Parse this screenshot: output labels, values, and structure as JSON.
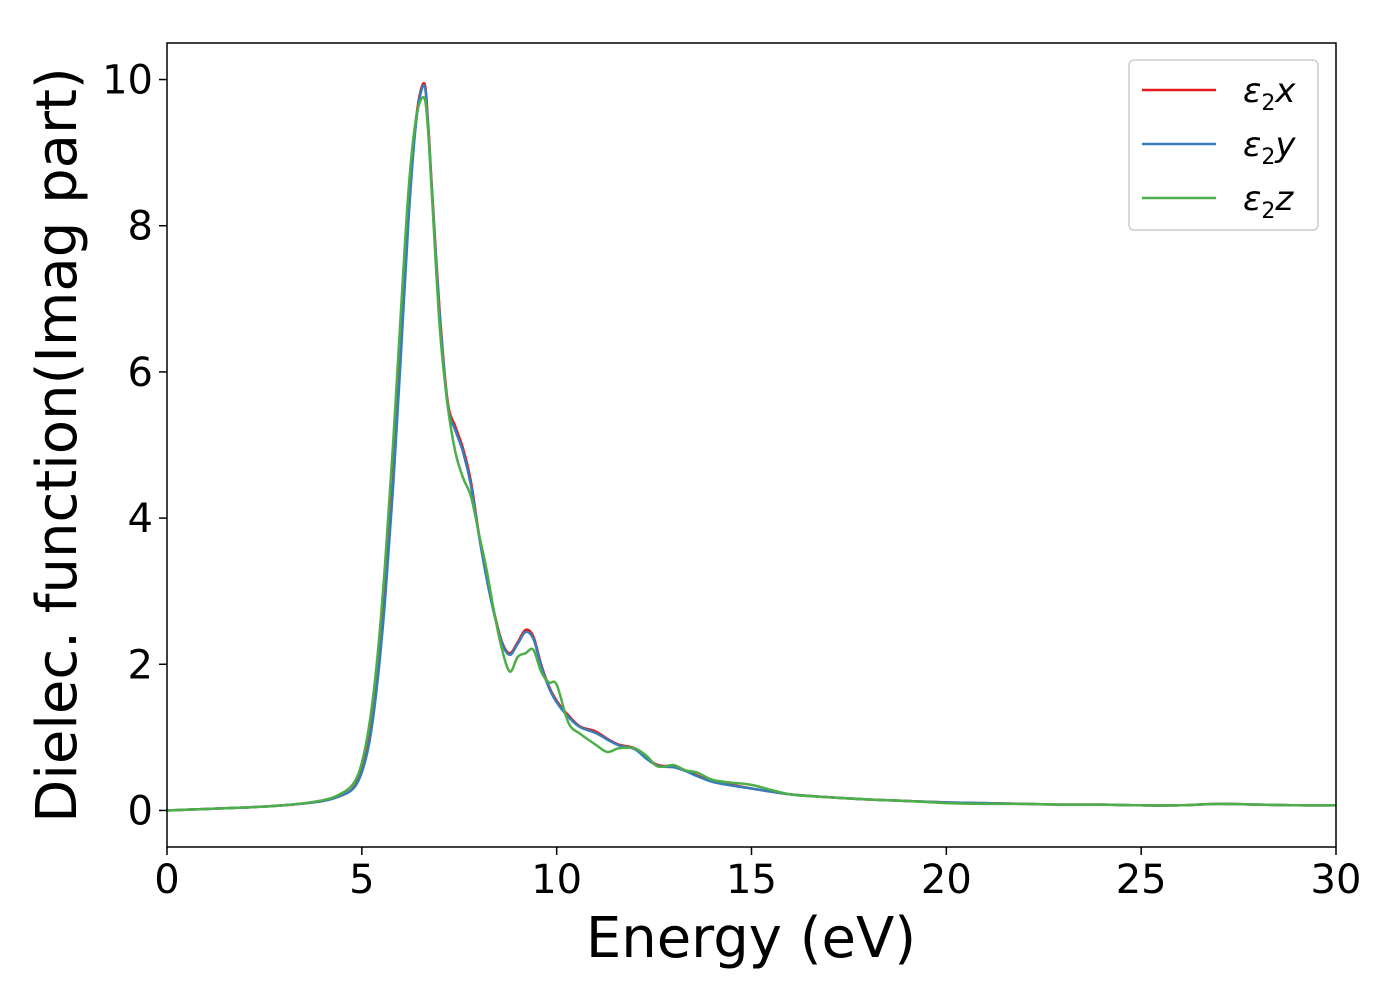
{
  "chart_data": {
    "type": "line",
    "xlabel": "Energy (eV)",
    "ylabel": "Dielec. function(Imag part)",
    "xlim": [
      0,
      30
    ],
    "ylim": [
      -0.5,
      10.5
    ],
    "xticks": [
      0,
      5,
      10,
      15,
      20,
      25,
      30
    ],
    "yticks": [
      0,
      2,
      4,
      6,
      8,
      10
    ],
    "xtick_labels": [
      "0",
      "5",
      "10",
      "15",
      "20",
      "25",
      "30"
    ],
    "ytick_labels": [
      "0",
      "2",
      "4",
      "6",
      "8",
      "10"
    ],
    "grid": false,
    "legend_position": "top-right",
    "series": [
      {
        "name": "ε2x",
        "legend": {
          "symbol": "ε",
          "sub": "2",
          "axis": "x"
        },
        "color": "#e41a1c",
        "x": [
          0,
          1,
          2,
          3,
          4,
          4.5,
          4.8,
          5.0,
          5.2,
          5.4,
          5.6,
          5.8,
          6.0,
          6.2,
          6.4,
          6.6,
          6.7,
          6.8,
          7.0,
          7.2,
          7.4,
          7.6,
          7.8,
          8.0,
          8.2,
          8.4,
          8.6,
          8.8,
          9.0,
          9.2,
          9.4,
          9.6,
          9.8,
          10.0,
          10.3,
          10.6,
          11.0,
          11.3,
          11.6,
          12.0,
          12.3,
          12.6,
          13.0,
          13.3,
          13.6,
          14.0,
          14.5,
          15.0,
          16.0,
          17.0,
          18.0,
          19.0,
          20.0,
          21.0,
          22.0,
          23.0,
          24.0,
          25.0,
          26.0,
          27.0,
          28.0,
          29.0,
          30.0
        ],
        "y": [
          0.0,
          0.02,
          0.04,
          0.07,
          0.13,
          0.21,
          0.32,
          0.55,
          1.0,
          1.8,
          3.0,
          4.5,
          6.3,
          8.2,
          9.5,
          9.95,
          9.4,
          8.5,
          6.8,
          5.6,
          5.25,
          4.95,
          4.5,
          3.8,
          3.2,
          2.7,
          2.3,
          2.15,
          2.3,
          2.47,
          2.38,
          2.0,
          1.7,
          1.5,
          1.3,
          1.15,
          1.08,
          0.98,
          0.9,
          0.85,
          0.72,
          0.62,
          0.6,
          0.55,
          0.48,
          0.4,
          0.35,
          0.3,
          0.22,
          0.18,
          0.15,
          0.13,
          0.11,
          0.1,
          0.09,
          0.08,
          0.08,
          0.07,
          0.07,
          0.09,
          0.08,
          0.07,
          0.07
        ]
      },
      {
        "name": "ε2y",
        "legend": {
          "symbol": "ε",
          "sub": "2",
          "axis": "y"
        },
        "color": "#377eb8",
        "x": [
          0,
          1,
          2,
          3,
          4,
          4.5,
          4.8,
          5.0,
          5.2,
          5.4,
          5.6,
          5.8,
          6.0,
          6.2,
          6.4,
          6.6,
          6.7,
          6.8,
          7.0,
          7.2,
          7.4,
          7.6,
          7.8,
          8.0,
          8.2,
          8.4,
          8.6,
          8.8,
          9.0,
          9.2,
          9.4,
          9.6,
          9.8,
          10.0,
          10.3,
          10.6,
          11.0,
          11.3,
          11.6,
          12.0,
          12.3,
          12.6,
          13.0,
          13.3,
          13.6,
          14.0,
          14.5,
          15.0,
          16.0,
          17.0,
          18.0,
          19.0,
          20.0,
          21.0,
          22.0,
          23.0,
          24.0,
          25.0,
          26.0,
          27.0,
          28.0,
          29.0,
          30.0
        ],
        "y": [
          0.0,
          0.02,
          0.04,
          0.07,
          0.13,
          0.21,
          0.31,
          0.52,
          0.95,
          1.75,
          2.9,
          4.4,
          6.2,
          8.1,
          9.45,
          9.92,
          9.35,
          8.45,
          6.75,
          5.55,
          5.2,
          4.9,
          4.45,
          3.78,
          3.18,
          2.68,
          2.28,
          2.13,
          2.28,
          2.44,
          2.35,
          1.98,
          1.68,
          1.48,
          1.28,
          1.14,
          1.06,
          0.97,
          0.89,
          0.84,
          0.71,
          0.61,
          0.59,
          0.54,
          0.47,
          0.39,
          0.34,
          0.3,
          0.22,
          0.18,
          0.15,
          0.13,
          0.11,
          0.1,
          0.09,
          0.08,
          0.08,
          0.07,
          0.07,
          0.09,
          0.08,
          0.07,
          0.07
        ]
      },
      {
        "name": "ε2z",
        "legend": {
          "symbol": "ε",
          "sub": "2",
          "axis": "z"
        },
        "color": "#4daf4a",
        "x": [
          0,
          1,
          2,
          3,
          4,
          4.5,
          4.8,
          5.0,
          5.2,
          5.4,
          5.6,
          5.8,
          6.0,
          6.2,
          6.4,
          6.6,
          6.7,
          6.8,
          7.0,
          7.2,
          7.4,
          7.6,
          7.8,
          8.0,
          8.2,
          8.4,
          8.6,
          8.8,
          9.0,
          9.2,
          9.4,
          9.6,
          9.8,
          10.0,
          10.3,
          10.6,
          11.0,
          11.3,
          11.6,
          12.0,
          12.3,
          12.6,
          13.0,
          13.3,
          13.6,
          14.0,
          14.5,
          15.0,
          16.0,
          17.0,
          18.0,
          19.0,
          20.0,
          21.0,
          22.0,
          23.0,
          24.0,
          25.0,
          26.0,
          27.0,
          28.0,
          29.0,
          30.0
        ],
        "y": [
          0.0,
          0.02,
          0.04,
          0.07,
          0.14,
          0.24,
          0.38,
          0.65,
          1.2,
          2.1,
          3.4,
          5.0,
          6.8,
          8.5,
          9.5,
          9.75,
          9.3,
          8.4,
          6.6,
          5.55,
          4.9,
          4.55,
          4.3,
          3.8,
          3.3,
          2.7,
          2.2,
          1.9,
          2.1,
          2.15,
          2.2,
          1.9,
          1.75,
          1.72,
          1.2,
          1.05,
          0.9,
          0.8,
          0.85,
          0.85,
          0.75,
          0.6,
          0.62,
          0.55,
          0.52,
          0.42,
          0.38,
          0.35,
          0.22,
          0.18,
          0.15,
          0.13,
          0.1,
          0.09,
          0.09,
          0.08,
          0.08,
          0.07,
          0.07,
          0.09,
          0.08,
          0.07,
          0.07
        ]
      }
    ]
  }
}
